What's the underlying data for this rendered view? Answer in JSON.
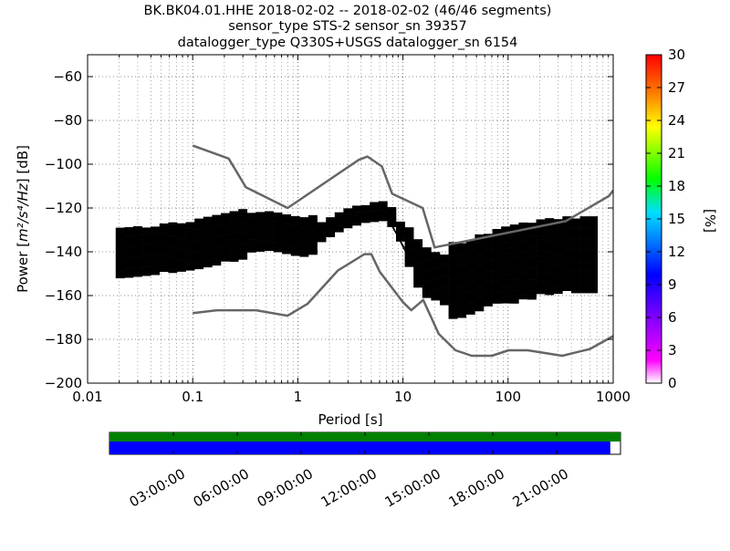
{
  "title_lines": [
    "BK.BK04.01.HHE   2018-02-02 -- 2018-02-02  (46/46 segments)",
    "sensor_type STS-2 sensor_sn 39357",
    "datalogger_type Q330S+USGS datalogger_sn 6154"
  ],
  "chart_data": {
    "type": "heatmap",
    "xlabel": "Period [s]",
    "ylabel": "Power [m²/s⁴/Hz] [dB]",
    "ylabel_parts": {
      "prefix": "Power [",
      "unit": "m²/s⁴/Hz",
      "suffix": "] [dB]"
    },
    "xscale": "log",
    "xlim": [
      0.01,
      1000
    ],
    "ylim": [
      -200,
      -50
    ],
    "x_tick_values": [
      0.01,
      0.1,
      1,
      10,
      100,
      1000
    ],
    "x_tick_labels": [
      "0.01",
      "0.1",
      "1",
      "10",
      "100",
      "1000"
    ],
    "y_tick_values": [
      -200,
      -180,
      -160,
      -140,
      -120,
      -100,
      -80,
      -60
    ],
    "y_tick_labels": [
      "−200",
      "−180",
      "−160",
      "−140",
      "−120",
      "−100",
      "−80",
      "−60"
    ],
    "grid": "dotted",
    "colorbar": {
      "label": "[%]",
      "min": 0,
      "max": 30,
      "tick_values": [
        0,
        3,
        6,
        9,
        12,
        15,
        18,
        21,
        24,
        27,
        30
      ],
      "tick_labels": [
        "0",
        "3",
        "6",
        "9",
        "12",
        "15",
        "18",
        "21",
        "24",
        "27",
        "30"
      ]
    },
    "nhnm": {
      "period": [
        0.1,
        0.22,
        0.32,
        0.8,
        3.8,
        4.6,
        6.3,
        7.9,
        15.4,
        20,
        354,
        912,
        1000
      ],
      "power": [
        -91.5,
        -97.4,
        -110.5,
        -120,
        -98,
        -96.5,
        -101,
        -113.5,
        -120,
        -138,
        -126,
        -114.5,
        -112
      ]
    },
    "nlnm": {
      "period": [
        0.1,
        0.17,
        0.4,
        0.8,
        1.24,
        2.4,
        4.3,
        5,
        6,
        10,
        12,
        15.6,
        21.9,
        31.6,
        45,
        70,
        101,
        154,
        328,
        600,
        1000
      ],
      "power": [
        -168,
        -166.7,
        -166.7,
        -169.2,
        -163.7,
        -148.6,
        -141.1,
        -141.1,
        -149,
        -163,
        -166.7,
        -162,
        -177.5,
        -185,
        -187.5,
        -187.5,
        -185,
        -185,
        -187.5,
        -184.4,
        -178.5
      ]
    },
    "mean": {
      "period": [
        0.02,
        0.05,
        0.1,
        0.2,
        0.3,
        0.5,
        1,
        1.5,
        2.5,
        4,
        6.5,
        8,
        10,
        14,
        20,
        30,
        50,
        80,
        150,
        300,
        600
      ],
      "power": [
        -143,
        -136,
        -134,
        -131,
        -130,
        -130,
        -133,
        -131,
        -127,
        -123,
        -122,
        -128,
        -138,
        -150,
        -155,
        -156,
        -153,
        -150,
        -146,
        -144,
        -143
      ]
    },
    "mode": {
      "period": [
        0.02,
        0.05,
        0.1,
        0.2,
        0.3,
        0.5,
        1,
        1.5,
        2.5,
        4,
        6.5,
        8,
        10,
        14,
        20,
        30,
        50,
        80,
        150,
        300,
        600
      ],
      "power": [
        -141,
        -139,
        -137,
        -134,
        -132,
        -131,
        -134,
        -132,
        -126,
        -123,
        -122,
        -129,
        -137,
        -149,
        -153,
        -154,
        -150,
        -147,
        -144,
        -142,
        -142
      ]
    }
  },
  "timeline": {
    "tick_labels": [
      "03:00:00",
      "06:00:00",
      "09:00:00",
      "12:00:00",
      "15:00:00",
      "18:00:00",
      "21:00:00"
    ],
    "tick_hours": [
      3,
      6,
      9,
      12,
      15,
      18,
      21
    ],
    "range_hours": [
      0,
      24
    ],
    "data_coverage": 0.98,
    "colors": {
      "segments": "#008000",
      "coverage": "#0000ff"
    }
  }
}
